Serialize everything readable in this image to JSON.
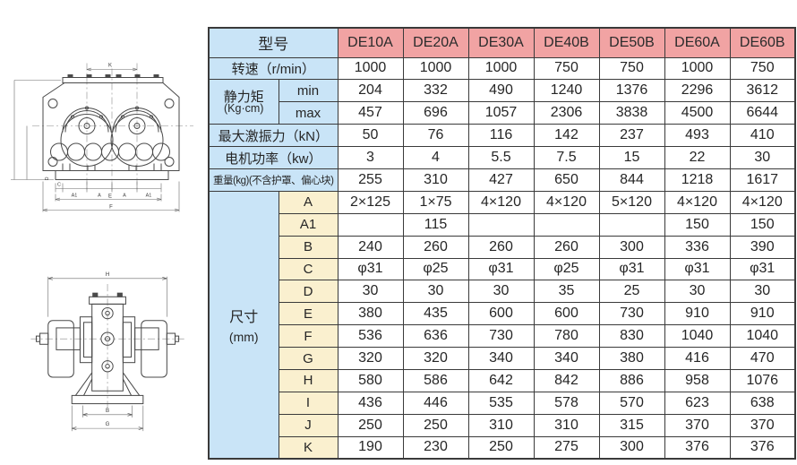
{
  "colors": {
    "model_header_pink": "#f1a3a3",
    "label_blue": "#c9e4f7",
    "dimension_cream": "#faf0cf",
    "grid_border": "#3a3a3a",
    "text": "#262626"
  },
  "table": {
    "model_header": "型号",
    "models": [
      "DE10A",
      "DE20A",
      "DE30A",
      "DE40B",
      "DE50B",
      "DE60A",
      "DE60B"
    ],
    "speed": {
      "label": "转速（r/min）",
      "values": [
        "1000",
        "1000",
        "1000",
        "750",
        "750",
        "1000",
        "750"
      ]
    },
    "static_moment": {
      "label": "静力矩",
      "unit": "(Kg·cm)",
      "min_label": "min",
      "max_label": "max",
      "min": [
        "204",
        "332",
        "490",
        "1240",
        "1376",
        "2296",
        "3612"
      ],
      "max": [
        "457",
        "696",
        "1057",
        "2306",
        "3838",
        "4500",
        "6644"
      ]
    },
    "spec_rows": [
      {
        "label": "最大激振力（kN）",
        "values": [
          "50",
          "76",
          "116",
          "142",
          "237",
          "493",
          "410"
        ]
      },
      {
        "label": "电机功率（kw）",
        "values": [
          "3",
          "4",
          "5.5",
          "7.5",
          "15",
          "22",
          "30"
        ]
      },
      {
        "label": "重量(kg)(不含护罩、偏心块)",
        "values": [
          "255",
          "310",
          "427",
          "650",
          "844",
          "1218",
          "1617"
        ]
      }
    ],
    "dimensions_label": "尺寸",
    "dimensions_unit": "(mm)",
    "dim_rows": [
      {
        "name": "A",
        "values": [
          "2×125",
          "1×75",
          "4×120",
          "4×120",
          "5×120",
          "4×120",
          "4×120"
        ]
      },
      {
        "name": "A1",
        "values": [
          "",
          "115",
          "",
          "",
          "",
          "150",
          "150"
        ]
      },
      {
        "name": "B",
        "values": [
          "240",
          "260",
          "260",
          "260",
          "300",
          "336",
          "390"
        ]
      },
      {
        "name": "C",
        "values": [
          "φ31",
          "φ25",
          "φ31",
          "φ25",
          "φ31",
          "φ31",
          "φ31"
        ]
      },
      {
        "name": "D",
        "values": [
          "30",
          "30",
          "30",
          "35",
          "25",
          "30",
          "30"
        ]
      },
      {
        "name": "E",
        "values": [
          "380",
          "435",
          "600",
          "600",
          "730",
          "910",
          "910"
        ]
      },
      {
        "name": "F",
        "values": [
          "536",
          "636",
          "730",
          "780",
          "830",
          "1040",
          "1040"
        ]
      },
      {
        "name": "G",
        "values": [
          "320",
          "320",
          "340",
          "340",
          "380",
          "416",
          "470"
        ]
      },
      {
        "name": "H",
        "values": [
          "580",
          "586",
          "642",
          "842",
          "886",
          "958",
          "1076"
        ]
      },
      {
        "name": "I",
        "values": [
          "436",
          "446",
          "535",
          "578",
          "570",
          "623",
          "638"
        ]
      },
      {
        "name": "J",
        "values": [
          "250",
          "250",
          "310",
          "310",
          "315",
          "370",
          "370"
        ]
      },
      {
        "name": "K",
        "values": [
          "190",
          "230",
          "250",
          "275",
          "300",
          "376",
          "376"
        ]
      }
    ]
  },
  "drawings": {
    "top": {
      "k": "K",
      "d": "D",
      "c": "C",
      "a1_left": "A1",
      "a_left": "A",
      "a_right": "A",
      "a1_right": "A1",
      "e": "E",
      "f": "F"
    },
    "side": {
      "h": "H",
      "b": "B",
      "g": "G"
    }
  }
}
